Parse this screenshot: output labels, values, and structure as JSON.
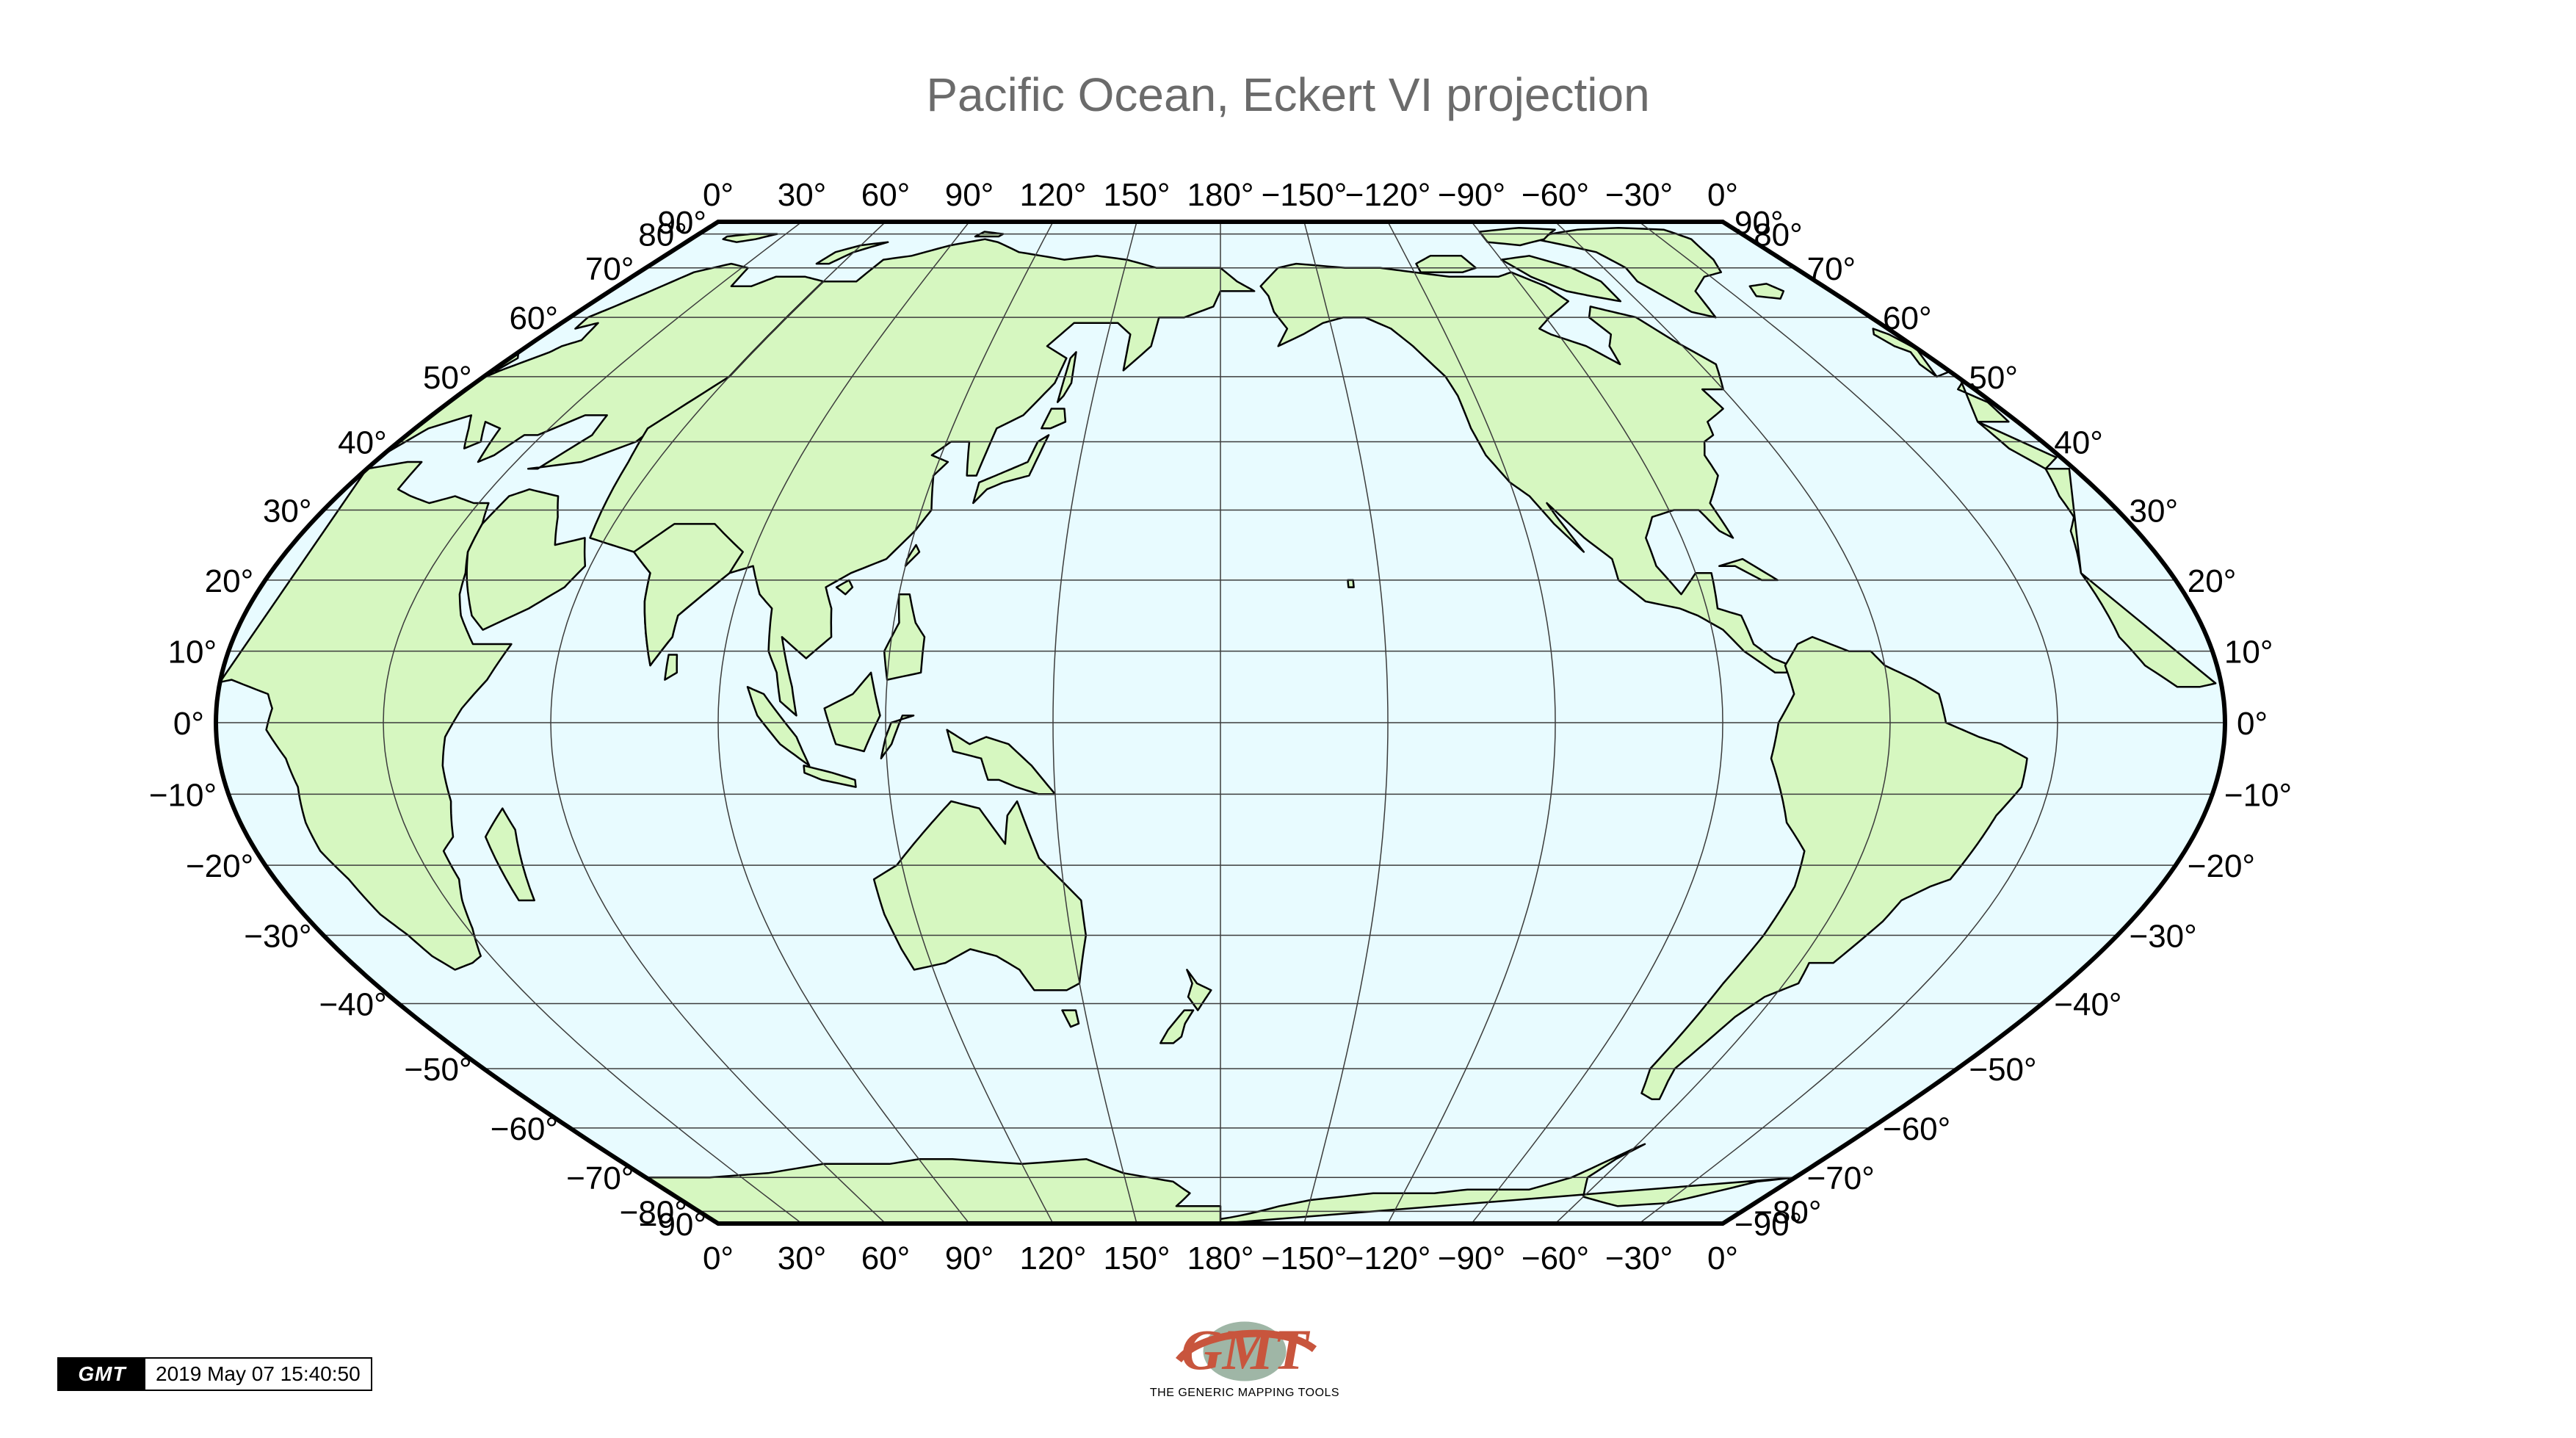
{
  "title": "Pacific Ocean, Eckert VI projection",
  "projection": "Eckert VI",
  "central_meridian": 180,
  "colors": {
    "ocean": "#e8fbff",
    "land": "#d6f7c0",
    "coast": "#000000",
    "grid": "#3c3c3c",
    "frame": "#000000",
    "title": "#6b6b6b"
  },
  "longitude_labels": [
    "0°",
    "30°",
    "60°",
    "90°",
    "120°",
    "150°",
    "180°",
    "−150°",
    "−120°",
    "−90°",
    "−60°",
    "−30°",
    "0°"
  ],
  "latitude_labels_left": [
    "90°",
    "80°",
    "70°",
    "60°",
    "50°",
    "40°",
    "30°",
    "20°",
    "10°",
    "0°",
    "−10°",
    "−20°",
    "−30°",
    "−40°",
    "−50°",
    "−60°",
    "−70°",
    "−80°",
    "−90°"
  ],
  "latitude_labels_right": [
    "90°",
    "80°",
    "70°",
    "60°",
    "50°",
    "40°",
    "30°",
    "20°",
    "10°",
    "0°",
    "−10°",
    "−20°",
    "−30°",
    "−40°",
    "−50°",
    "−60°",
    "−70°",
    "−80°",
    "−90°"
  ],
  "latitudes": [
    90,
    80,
    70,
    60,
    50,
    40,
    30,
    20,
    10,
    0,
    -10,
    -20,
    -30,
    -40,
    -50,
    -60,
    -70,
    -80,
    -90
  ],
  "longitudes": [
    0,
    30,
    60,
    90,
    120,
    150,
    180,
    -150,
    -120,
    -90,
    -60,
    -30,
    0
  ],
  "timestamp": {
    "logo_text": "GMT",
    "text": "2019 May 07 15:40:50"
  },
  "gmt_logo": {
    "text": "GMT",
    "caption": "THE GENERIC MAPPING TOOLS"
  },
  "landmasses": [
    "Africa",
    "Europe",
    "Asia",
    "Australia",
    "New Zealand",
    "North America",
    "Greenland",
    "South America",
    "Antarctica",
    "Madagascar",
    "Japan",
    "Philippines",
    "Indonesia",
    "New Guinea",
    "Sri Lanka",
    "Arabia"
  ]
}
